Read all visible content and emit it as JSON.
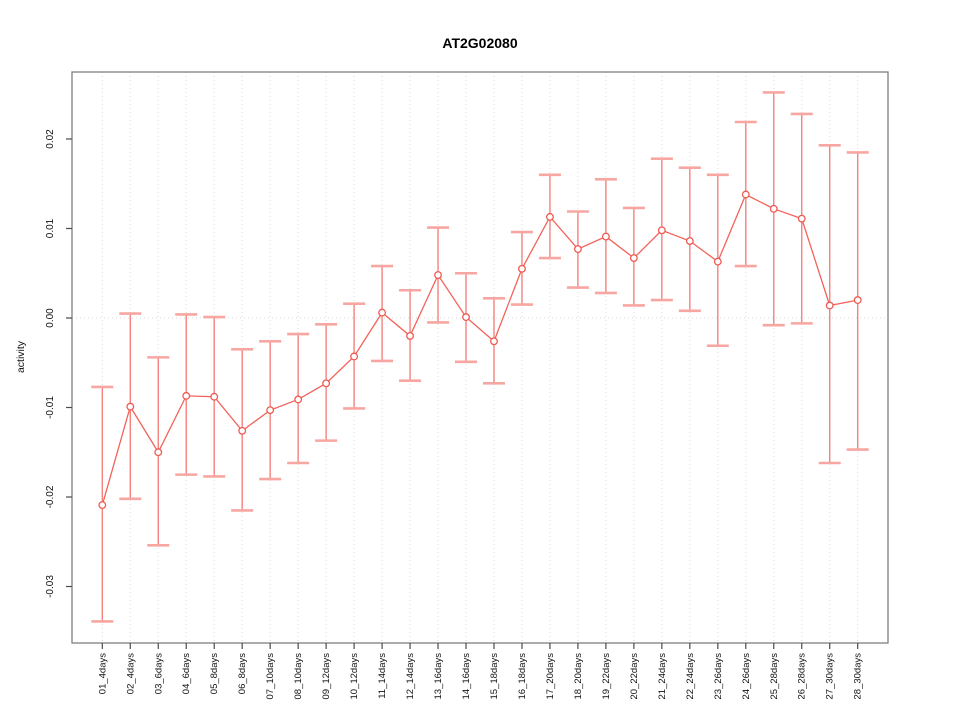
{
  "title": "AT2G02080",
  "colors": {
    "background": "#ffffff",
    "box": "#7f7f7f",
    "tick": "#4a4a4a",
    "grid": "#dcdcdc",
    "zero_line": "#d9d9d9",
    "series_line": "#f3625a",
    "error_bar": "#f5827e",
    "error_cap": "#f8a6a2",
    "point_stroke": "#ef5a52",
    "point_fill": "#ffffff",
    "text": "#000000"
  },
  "chart_data": {
    "type": "line",
    "title": "AT2G02080",
    "xlabel": "",
    "ylabel": "activity",
    "legend": "none",
    "grid": {
      "vertical_per_category": true,
      "horizontal_zero_line": true,
      "style": "dotted"
    },
    "marker": "open-circle",
    "error_bars": true,
    "ylim": [
      -0.0363,
      0.0276
    ],
    "yticks": [
      {
        "value": -0.03,
        "label": "-0.03"
      },
      {
        "value": -0.02,
        "label": "-0.02"
      },
      {
        "value": -0.01,
        "label": "-0.01"
      },
      {
        "value": 0.0,
        "label": "0.00"
      },
      {
        "value": 0.01,
        "label": "0.01"
      },
      {
        "value": 0.02,
        "label": "0.02"
      }
    ],
    "categories": [
      "01_4days",
      "02_4days",
      "03_6days",
      "04_6days",
      "05_8days",
      "06_8days",
      "07_10days",
      "08_10days",
      "09_12days",
      "10_12days",
      "11_14days",
      "12_14days",
      "13_16days",
      "14_16days",
      "15_18days",
      "16_18days",
      "17_20days",
      "18_20days",
      "19_22days",
      "20_22days",
      "21_24days",
      "22_24days",
      "23_26days",
      "24_26days",
      "25_28days",
      "26_28days",
      "27_30days",
      "28_30days"
    ],
    "series": [
      {
        "name": "activity",
        "values": [
          -0.0209,
          -0.0099,
          -0.015,
          -0.0087,
          -0.0088,
          -0.0126,
          -0.0103,
          -0.0091,
          -0.0073,
          -0.0043,
          0.0006,
          -0.002,
          0.0048,
          0.0001,
          -0.0026,
          0.0055,
          0.0113,
          0.0077,
          0.0091,
          0.0067,
          0.0098,
          0.0086,
          0.0063,
          0.0138,
          0.0122,
          0.0111,
          0.0014,
          0.002
        ],
        "ci_low": [
          -0.0339,
          -0.0202,
          -0.0254,
          -0.0175,
          -0.0177,
          -0.0215,
          -0.018,
          -0.0162,
          -0.0137,
          -0.0101,
          -0.0048,
          -0.007,
          -0.0005,
          -0.0049,
          -0.0073,
          0.0015,
          0.0067,
          0.0034,
          0.0028,
          0.0014,
          0.002,
          0.0008,
          -0.0031,
          0.0058,
          -0.0008,
          -0.0006,
          -0.0162,
          -0.0147
        ],
        "ci_high": [
          -0.0077,
          0.0005,
          -0.0044,
          0.0004,
          0.0001,
          -0.0035,
          -0.0026,
          -0.0018,
          -0.0007,
          0.0016,
          0.0058,
          0.0031,
          0.0101,
          0.005,
          0.0022,
          0.0096,
          0.016,
          0.0119,
          0.0155,
          0.0123,
          0.0178,
          0.0168,
          0.016,
          0.0219,
          0.0252,
          0.0228,
          0.0193,
          0.0185
        ]
      }
    ]
  }
}
